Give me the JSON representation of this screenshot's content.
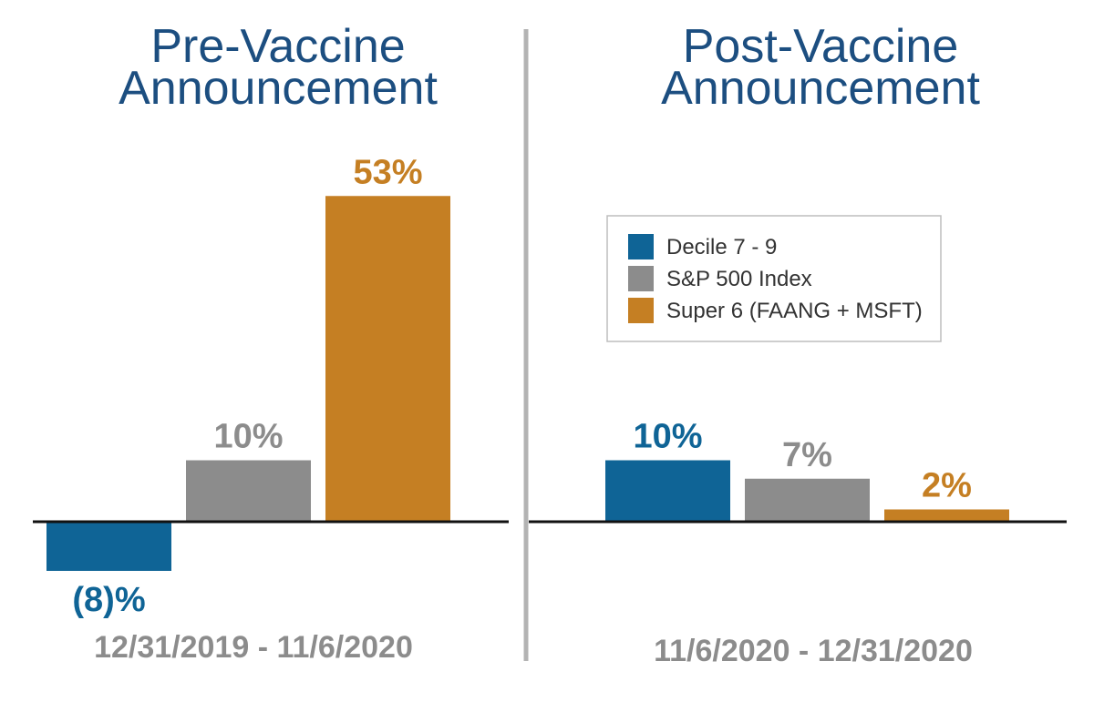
{
  "colors": {
    "decile": "#0f6496",
    "sp500": "#8c8c8c",
    "super6": "#c57f23",
    "title": "#1c4e80",
    "divider": "#b3b3b3"
  },
  "legend": {
    "items": [
      {
        "label": "Decile 7 - 9",
        "color": "#0f6496"
      },
      {
        "label": "S&P 500 Index",
        "color": "#8c8c8c"
      },
      {
        "label": "Super 6 (FAANG + MSFT)",
        "color": "#c57f23"
      }
    ]
  },
  "chart_data": [
    {
      "type": "bar",
      "title_lines": [
        "Pre-Vaccine",
        "Announcement"
      ],
      "period": "12/31/2019 - 11/6/2020",
      "categories": [
        "Decile 7 - 9",
        "S&P 500 Index",
        "Super 6 (FAANG + MSFT)"
      ],
      "values": [
        -8,
        10,
        53
      ],
      "labels": [
        "(8)%",
        "10%",
        "53%"
      ]
    },
    {
      "type": "bar",
      "title_lines": [
        "Post-Vaccine",
        "Announcement"
      ],
      "period": "11/6/2020 - 12/31/2020",
      "categories": [
        "Decile 7 - 9",
        "S&P 500 Index",
        "Super 6 (FAANG + MSFT)"
      ],
      "values": [
        10,
        7,
        2
      ],
      "labels": [
        "10%",
        "7%",
        "2%"
      ]
    }
  ]
}
